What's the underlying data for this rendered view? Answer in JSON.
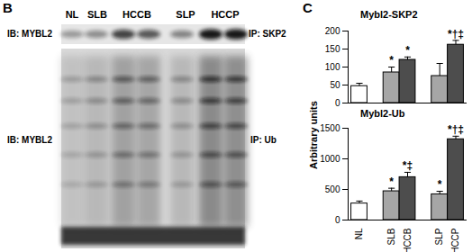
{
  "panel_b": {
    "label": "B",
    "lanes": [
      "NL",
      "SLB",
      "HCCB",
      "SLP",
      "HCCP"
    ],
    "blots": [
      {
        "left_label": "IB: MYBL2",
        "right_label": "IP: SKP2"
      },
      {
        "left_label": "IB: MYBL2",
        "right_label": "IP: Ub"
      }
    ]
  },
  "panel_c": {
    "label": "C",
    "ylabel": "Arbitrary units"
  },
  "chart_data": [
    {
      "type": "bar",
      "title": "Mybl2-SKP2",
      "categories": [
        "NL",
        null,
        "SLB",
        "HCCB",
        null,
        "SLP",
        "HCCP"
      ],
      "values": [
        47,
        null,
        85,
        120,
        null,
        75,
        162
      ],
      "errors": [
        8,
        null,
        15,
        8,
        null,
        35,
        12
      ],
      "annotations": [
        null,
        null,
        "*",
        "*",
        null,
        null,
        "*†‡"
      ],
      "colors": [
        "#ffffff",
        null,
        "#a6a6a6",
        "#4d4d4d",
        null,
        "#a6a6a6",
        "#4d4d4d"
      ],
      "ylim": [
        0,
        200
      ],
      "yticks": [
        0,
        50,
        100,
        150,
        200
      ],
      "tick_labels": "y"
    },
    {
      "type": "bar",
      "title": "Mybl2-Ub",
      "categories": [
        "NL",
        null,
        "SLB",
        "HCCB",
        null,
        "SLP",
        "HCCP"
      ],
      "values": [
        270,
        null,
        470,
        700,
        null,
        420,
        1320
      ],
      "errors": [
        40,
        null,
        50,
        80,
        null,
        50,
        50
      ],
      "annotations": [
        null,
        null,
        "*",
        "*‡",
        null,
        "*",
        "*†‡"
      ],
      "colors": [
        "#ffffff",
        null,
        "#a6a6a6",
        "#4d4d4d",
        null,
        "#a6a6a6",
        "#4d4d4d"
      ],
      "ylim": [
        0,
        1500
      ],
      "yticks": [
        0,
        500,
        1000,
        1500
      ]
    }
  ]
}
